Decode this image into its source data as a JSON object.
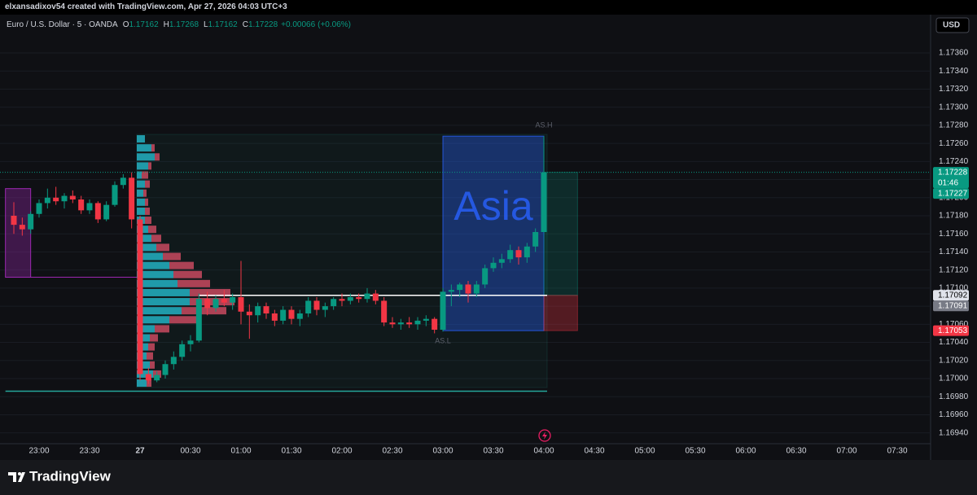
{
  "header": {
    "text": "elxansadixov54 created with TradingView.com, Apr 27, 2026 04:03 UTC+3"
  },
  "footer": {
    "logo": "TradingView"
  },
  "chart_data": {
    "type": "candlestick",
    "title": "Euro / U.S. Dollar · 5 · OANDA",
    "ohlc": [
      {
        "key": "O",
        "value": 1.17162
      },
      {
        "key": "H",
        "value": 1.17268
      },
      {
        "key": "L",
        "value": 1.17162
      },
      {
        "key": "C",
        "value": 1.17228
      }
    ],
    "change": {
      "value": 0.00066,
      "label": "+0.00066"
    },
    "change_pct": {
      "value": 0.06,
      "label": "(+0.06%)"
    },
    "currency": "USD",
    "up_color": "#089981",
    "down_color": "#f23645",
    "x": [
      "22:45",
      "22:50",
      "22:55",
      "23:00",
      "23:05",
      "23:10",
      "23:15",
      "23:20",
      "23:25",
      "23:30",
      "23:35",
      "23:40",
      "23:45",
      "23:50",
      "23:55",
      "00:00",
      "00:05",
      "00:10",
      "00:15",
      "00:20",
      "00:25",
      "00:30",
      "00:35",
      "00:40",
      "00:45",
      "00:50",
      "00:55",
      "01:00",
      "01:05",
      "01:10",
      "01:15",
      "01:20",
      "01:25",
      "01:30",
      "01:35",
      "01:40",
      "01:45",
      "01:50",
      "01:55",
      "02:00",
      "02:05",
      "02:10",
      "02:15",
      "02:20",
      "02:25",
      "02:30",
      "02:35",
      "02:40",
      "02:45",
      "02:50",
      "02:55",
      "03:00",
      "03:05",
      "03:10",
      "03:15",
      "03:20",
      "03:25",
      "03:30",
      "03:35",
      "03:40",
      "03:45",
      "03:50",
      "03:55",
      "04:00"
    ],
    "open": [
      1.1718,
      1.1717,
      1.17165,
      1.17182,
      1.17194,
      1.172,
      1.17196,
      1.17202,
      1.17198,
      1.17186,
      1.17194,
      1.17176,
      1.17192,
      1.17214,
      1.17222,
      1.17176,
      1.17005,
      1.16998,
      1.17004,
      1.17016,
      1.17024,
      1.17038,
      1.17042,
      1.17088,
      1.17078,
      1.17088,
      1.17084,
      1.1709,
      1.17074,
      1.1707,
      1.1708,
      1.17072,
      1.17064,
      1.17076,
      1.17066,
      1.17072,
      1.17086,
      1.17076,
      1.1708,
      1.17088,
      1.17086,
      1.1709,
      1.17088,
      1.17094,
      1.17086,
      1.17062,
      1.1706,
      1.17062,
      1.1706,
      1.17064,
      1.17066,
      1.17054,
      1.17096,
      1.17098,
      1.17104,
      1.17094,
      1.17104,
      1.17122,
      1.17128,
      1.17132,
      1.17142,
      1.17134,
      1.17146,
      1.17162
    ],
    "high": [
      1.17195,
      1.17178,
      1.17185,
      1.17198,
      1.1721,
      1.17212,
      1.17205,
      1.17208,
      1.17202,
      1.17198,
      1.17196,
      1.17196,
      1.17218,
      1.17226,
      1.17228,
      1.1718,
      1.17012,
      1.17008,
      1.1702,
      1.1703,
      1.17042,
      1.17048,
      1.17094,
      1.17096,
      1.17092,
      1.17098,
      1.17094,
      1.1713,
      1.17082,
      1.17084,
      1.17084,
      1.17076,
      1.1708,
      1.1708,
      1.17076,
      1.1709,
      1.1709,
      1.17084,
      1.1709,
      1.17094,
      1.17094,
      1.17094,
      1.171,
      1.17098,
      1.1709,
      1.17068,
      1.17066,
      1.17068,
      1.17068,
      1.1707,
      1.17068,
      1.171,
      1.17104,
      1.17106,
      1.17108,
      1.17108,
      1.17126,
      1.17134,
      1.17138,
      1.17148,
      1.17146,
      1.1715,
      1.17166,
      1.17268
    ],
    "low": [
      1.1716,
      1.17158,
      1.1716,
      1.17178,
      1.17188,
      1.17192,
      1.17188,
      1.17194,
      1.17182,
      1.17182,
      1.17172,
      1.17174,
      1.1719,
      1.1721,
      1.17166,
      1.16998,
      1.16994,
      1.16996,
      1.17,
      1.1701,
      1.1702,
      1.1703,
      1.1704,
      1.1707,
      1.17074,
      1.1708,
      1.17076,
      1.1706,
      1.17044,
      1.17062,
      1.17066,
      1.17058,
      1.1706,
      1.1706,
      1.17058,
      1.17068,
      1.1707,
      1.17068,
      1.17076,
      1.1708,
      1.17082,
      1.17084,
      1.17084,
      1.17082,
      1.17058,
      1.17056,
      1.17054,
      1.17056,
      1.17054,
      1.17058,
      1.1705,
      1.17052,
      1.1708,
      1.1709,
      1.17084,
      1.1709,
      1.171,
      1.17118,
      1.17122,
      1.17128,
      1.17126,
      1.17128,
      1.1714,
      1.17162
    ],
    "close": [
      1.1717,
      1.17165,
      1.17182,
      1.17194,
      1.172,
      1.17196,
      1.17202,
      1.17198,
      1.17186,
      1.17194,
      1.17176,
      1.17192,
      1.17214,
      1.17222,
      1.17176,
      1.17005,
      1.16998,
      1.17004,
      1.17016,
      1.17024,
      1.17038,
      1.17042,
      1.17088,
      1.17078,
      1.17088,
      1.17084,
      1.1709,
      1.17074,
      1.1707,
      1.1708,
      1.17072,
      1.17064,
      1.17076,
      1.17066,
      1.17072,
      1.17086,
      1.17076,
      1.1708,
      1.17088,
      1.17086,
      1.1709,
      1.17088,
      1.17094,
      1.17086,
      1.17062,
      1.1706,
      1.17062,
      1.1706,
      1.17064,
      1.17066,
      1.17054,
      1.17096,
      1.17098,
      1.17104,
      1.17094,
      1.17104,
      1.17122,
      1.17128,
      1.17132,
      1.17142,
      1.17134,
      1.17146,
      1.17162,
      1.17228
    ],
    "xticks": [
      "23:00",
      "23:30",
      {
        "value": "00:00",
        "label": "27"
      },
      "00:30",
      "01:00",
      "01:30",
      "02:00",
      "02:30",
      "03:00",
      "03:30",
      "04:00",
      "04:30",
      "05:00",
      "05:30",
      "06:00",
      "06:30",
      "07:00",
      "07:30"
    ],
    "ylim": [
      1.16928,
      1.17378
    ],
    "yticks": [
      {
        "value": 1.1736,
        "label": "1.17360"
      },
      {
        "value": 1.1734,
        "label": "1.17340"
      },
      {
        "value": 1.1732,
        "label": "1.17320"
      },
      {
        "value": 1.173,
        "label": "1.17300"
      },
      {
        "value": 1.1728,
        "label": "1.17280"
      },
      {
        "value": 1.1726,
        "label": "1.17260"
      },
      {
        "value": 1.1724,
        "label": "1.17240"
      },
      {
        "value": 1.1722,
        "label": "1.17220"
      },
      {
        "value": 1.172,
        "label": "1.17200"
      },
      {
        "value": 1.1718,
        "label": "1.17180"
      },
      {
        "value": 1.1716,
        "label": "1.17160"
      },
      {
        "value": 1.1714,
        "label": "1.17140"
      },
      {
        "value": 1.1712,
        "label": "1.17120"
      },
      {
        "value": 1.171,
        "label": "1.17100"
      },
      {
        "value": 1.1708,
        "label": "1.17080"
      },
      {
        "value": 1.1706,
        "label": "1.17060"
      },
      {
        "value": 1.1704,
        "label": "1.17040"
      },
      {
        "value": 1.1702,
        "label": "1.17020"
      },
      {
        "value": 1.17,
        "label": "1.17000"
      },
      {
        "value": 1.1698,
        "label": "1.16980"
      },
      {
        "value": 1.1696,
        "label": "1.16960"
      },
      {
        "value": 1.1694,
        "label": "1.16940"
      }
    ],
    "grid": true,
    "price_labels": [
      {
        "value": 1.17228,
        "label": "1.17228",
        "color": "#089981",
        "text_color": "#ffffff",
        "countdown": "01:46"
      },
      {
        "value": 1.17227,
        "label": "1.17227",
        "color": "#089981",
        "text_color": "#ffffff"
      },
      {
        "value": 1.17092,
        "label": "1.17092",
        "color": "#e0e3eb",
        "text_color": "#000000"
      },
      {
        "value": 1.17091,
        "label": "1.17091",
        "color": "#787b86",
        "text_color": "#ffffff"
      },
      {
        "value": 1.17053,
        "label": "1.17053",
        "color": "#f23645",
        "text_color": "#ffffff"
      }
    ],
    "session": {
      "label": "Asia",
      "high_label": "AS.H",
      "low_label": "AS.L",
      "start": "03:00",
      "end": "04:00",
      "high": 1.17268,
      "low": 1.17053,
      "color": "#2962ff"
    },
    "position": {
      "start": "04:00",
      "end": "04:20",
      "target": 1.17228,
      "entry": 1.17092,
      "stop": 1.17053
    },
    "box": {
      "start": "22:40",
      "end": "22:55",
      "high": 1.1721,
      "low": 1.17112,
      "color": "#9c27b0"
    },
    "levels": [
      {
        "value": 1.17092,
        "start": "00:35",
        "end": "04:00",
        "color": "#ffffff"
      },
      {
        "value": 1.16986,
        "start": "22:40",
        "end": "04:00",
        "color": "#26a69a"
      }
    ],
    "volume_profile": {
      "start": "00:00",
      "end": "04:00",
      "up_color": "#26c6da",
      "down_color": "#e0506a",
      "prices": [
        1.17265,
        1.17255,
        1.17245,
        1.17235,
        1.17225,
        1.17215,
        1.17205,
        1.17195,
        1.17185,
        1.17175,
        1.17165,
        1.17155,
        1.17145,
        1.17135,
        1.17125,
        1.17115,
        1.17105,
        1.17095,
        1.17085,
        1.17075,
        1.17065,
        1.17055,
        1.17045,
        1.17035,
        1.17025,
        1.17015,
        1.17005,
        1.16995
      ],
      "up": [
        10,
        18,
        22,
        14,
        6,
        10,
        8,
        10,
        10,
        10,
        14,
        18,
        24,
        32,
        40,
        45,
        50,
        65,
        65,
        55,
        40,
        22,
        16,
        14,
        12,
        16,
        20,
        12
      ],
      "down": [
        0,
        4,
        6,
        4,
        8,
        6,
        4,
        4,
        6,
        8,
        10,
        12,
        16,
        22,
        30,
        35,
        40,
        50,
        55,
        55,
        35,
        18,
        10,
        8,
        8,
        6,
        10,
        6
      ]
    }
  }
}
